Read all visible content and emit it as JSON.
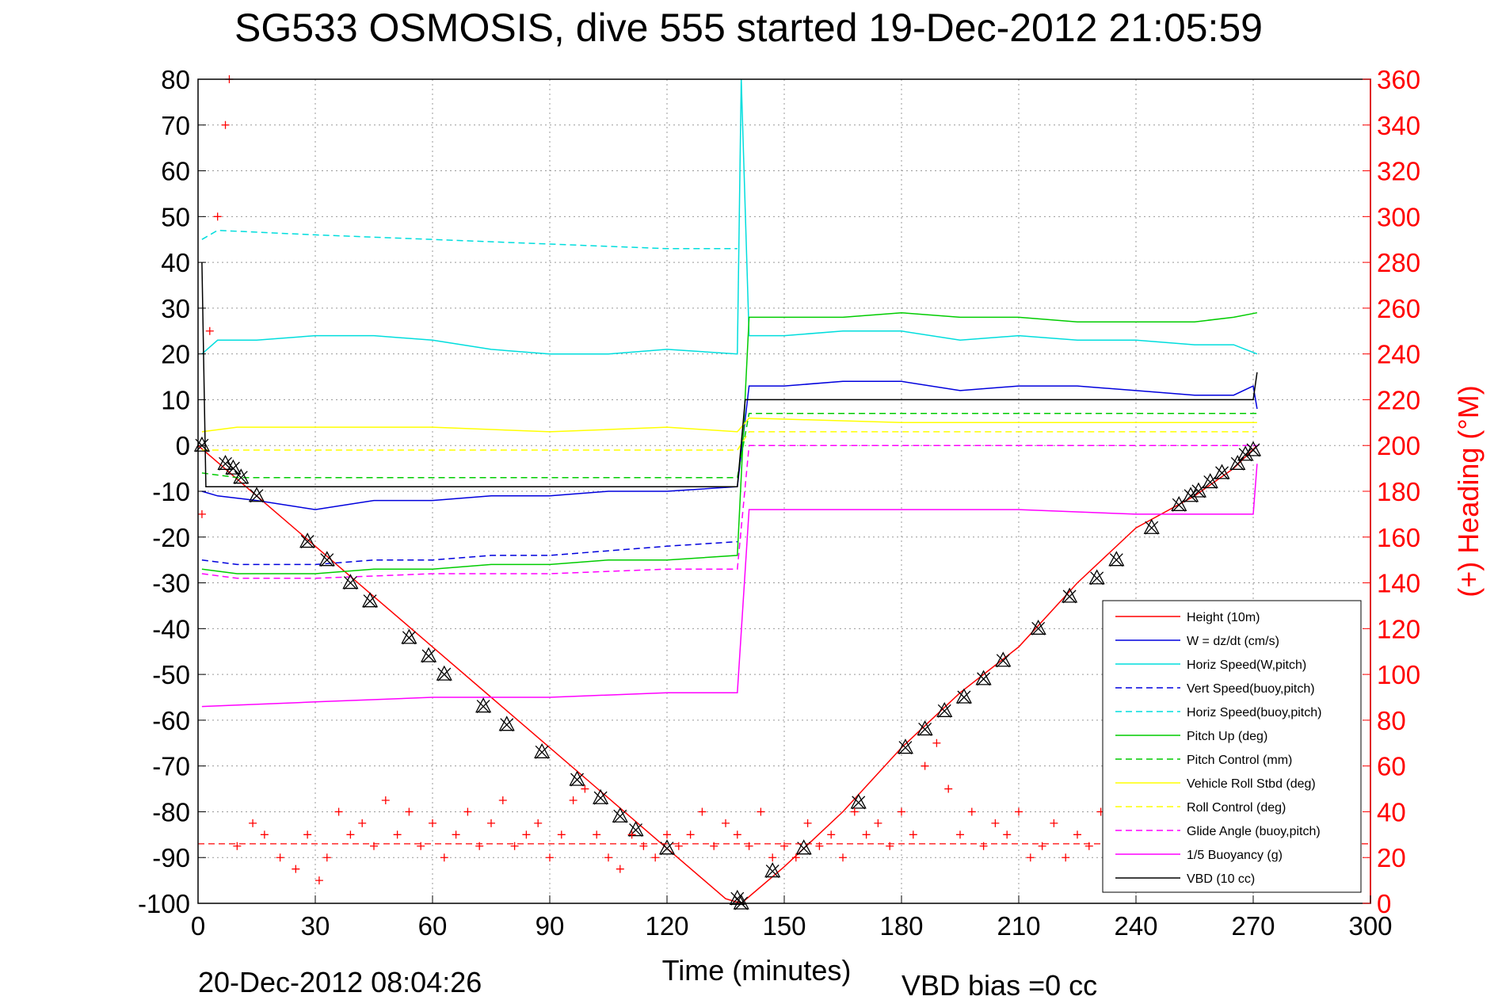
{
  "chart_data": {
    "type": "line",
    "title": "SG533 OSMOSIS, dive 555 started 19-Dec-2012 21:05:59",
    "xlabel": "Time (minutes)",
    "ylabel_right": "(+) Heading (°M)",
    "xlim": [
      0,
      300
    ],
    "ylim": [
      -100,
      80
    ],
    "ylim_right": [
      0,
      360
    ],
    "x_ticks": [
      "0",
      "30",
      "60",
      "90",
      "120",
      "150",
      "180",
      "210",
      "240",
      "270",
      "300"
    ],
    "y_ticks": [
      "80",
      "70",
      "60",
      "50",
      "40",
      "30",
      "20",
      "10",
      "0",
      "-10",
      "-20",
      "-30",
      "-40",
      "-50",
      "-60",
      "-70",
      "-80",
      "-90",
      "-100"
    ],
    "y_right_ticks": [
      "360",
      "340",
      "320",
      "300",
      "280",
      "260",
      "240",
      "220",
      "200",
      "180",
      "160",
      "140",
      "120",
      "100",
      "80",
      "60",
      "40",
      "20",
      "0"
    ],
    "grid": true,
    "legend_position": "bottom-right",
    "footer_left": "20-Dec-2012 08:04:26",
    "footer_center": "VBD bias =0 cc",
    "series": [
      {
        "name": "Height (10m)",
        "color": "#ff0000",
        "style": "solid",
        "x": [
          0,
          15,
          30,
          45,
          60,
          75,
          90,
          105,
          120,
          135,
          139,
          150,
          165,
          180,
          195,
          210,
          225,
          240,
          255,
          265,
          271
        ],
        "y": [
          0,
          -11,
          -22,
          -33,
          -44,
          -55,
          -66,
          -77,
          -88,
          -99,
          -100,
          -92,
          -80,
          -66,
          -54,
          -44,
          -30,
          -18,
          -11,
          -5,
          0
        ]
      },
      {
        "name": "W = dz/dt (cm/s)",
        "color": "#0000dd",
        "style": "solid",
        "x": [
          1,
          5,
          15,
          30,
          45,
          60,
          75,
          90,
          105,
          120,
          138,
          141,
          150,
          165,
          180,
          195,
          210,
          225,
          240,
          255,
          265,
          270,
          271
        ],
        "y": [
          -10,
          -11,
          -12,
          -14,
          -12,
          -12,
          -11,
          -11,
          -10,
          -10,
          -9,
          13,
          13,
          14,
          14,
          12,
          13,
          13,
          12,
          11,
          11,
          13,
          8
        ]
      },
      {
        "name": "Horiz Speed(W,pitch)",
        "color": "#00dddd",
        "style": "solid",
        "x": [
          1,
          5,
          15,
          30,
          45,
          60,
          75,
          90,
          105,
          120,
          138,
          139,
          141,
          150,
          165,
          180,
          195,
          210,
          225,
          240,
          255,
          265,
          271
        ],
        "y": [
          20,
          23,
          23,
          24,
          24,
          23,
          21,
          20,
          20,
          21,
          20,
          80,
          24,
          24,
          25,
          25,
          23,
          24,
          23,
          23,
          22,
          22,
          20
        ]
      },
      {
        "name": "Vert Speed(buoy,pitch)",
        "color": "#0000dd",
        "style": "dashed",
        "x": [
          1,
          10,
          30,
          45,
          60,
          75,
          90,
          105,
          120,
          138
        ],
        "y": [
          -25,
          -26,
          -26,
          -25,
          -25,
          -24,
          -24,
          -23,
          -22,
          -21
        ]
      },
      {
        "name": "Horiz Speed(buoy,pitch)",
        "color": "#00dddd",
        "style": "dashed",
        "x": [
          1,
          5,
          30,
          60,
          90,
          120,
          138
        ],
        "y": [
          45,
          47,
          46,
          45,
          44,
          43,
          43
        ]
      },
      {
        "name": "Pitch Up (deg)",
        "color": "#00cc00",
        "style": "solid",
        "x": [
          1,
          10,
          30,
          45,
          60,
          75,
          90,
          105,
          120,
          138,
          141,
          150,
          165,
          180,
          195,
          210,
          225,
          240,
          255,
          265,
          271
        ],
        "y": [
          -27,
          -28,
          -28,
          -27,
          -27,
          -26,
          -26,
          -25,
          -25,
          -24,
          28,
          28,
          28,
          29,
          28,
          28,
          27,
          27,
          27,
          28,
          29
        ]
      },
      {
        "name": "Pitch Control (mm)",
        "color": "#00cc00",
        "style": "dashed",
        "x": [
          1,
          10,
          138,
          141,
          271
        ],
        "y": [
          -6,
          -7,
          -7,
          7,
          7
        ]
      },
      {
        "name": "Vehicle Roll Stbd (deg)",
        "color": "#ffff00",
        "style": "solid",
        "x": [
          1,
          10,
          30,
          60,
          90,
          120,
          138,
          141,
          180,
          240,
          271
        ],
        "y": [
          3,
          4,
          4,
          4,
          3,
          4,
          3,
          6,
          5,
          5,
          5
        ]
      },
      {
        "name": "Roll Control (deg)",
        "color": "#ffff00",
        "style": "dashed",
        "x": [
          1,
          138,
          141,
          271
        ],
        "y": [
          -1,
          -1,
          3,
          3
        ]
      },
      {
        "name": "Glide Angle (buoy,pitch)",
        "color": "#ff00ff",
        "style": "dashed",
        "x": [
          1,
          10,
          30,
          60,
          90,
          120,
          138,
          141,
          271
        ],
        "y": [
          -28,
          -29,
          -29,
          -28,
          -28,
          -27,
          -27,
          0,
          0
        ]
      },
      {
        "name": "1/5 Buoyancy (g)",
        "color": "#ff00ff",
        "style": "solid",
        "x": [
          1,
          30,
          60,
          90,
          120,
          138,
          141,
          180,
          210,
          240,
          255,
          270,
          271
        ],
        "y": [
          -57,
          -56,
          -55,
          -55,
          -54,
          -54,
          -14,
          -14,
          -14,
          -15,
          -15,
          -15,
          -4
        ]
      },
      {
        "name": "VBD (10 cc)",
        "color": "#000000",
        "style": "solid",
        "x": [
          1,
          2,
          138,
          140,
          141,
          270,
          271
        ],
        "y": [
          40,
          -9,
          -9,
          10,
          10,
          10,
          16
        ]
      }
    ],
    "heading": {
      "color": "#ff0000",
      "marker": "+",
      "axis": "right",
      "x": [
        1,
        3,
        5,
        7,
        8,
        10,
        14,
        17,
        21,
        25,
        28,
        31,
        33,
        36,
        39,
        42,
        45,
        48,
        51,
        54,
        57,
        60,
        63,
        66,
        69,
        72,
        75,
        78,
        81,
        84,
        87,
        90,
        93,
        96,
        99,
        102,
        105,
        108,
        111,
        114,
        117,
        120,
        123,
        126,
        129,
        132,
        135,
        138,
        141,
        144,
        147,
        150,
        153,
        156,
        159,
        162,
        165,
        168,
        171,
        174,
        177,
        180,
        183,
        186,
        189,
        192,
        195,
        198,
        201,
        204,
        207,
        210,
        213,
        216,
        219,
        222,
        225,
        228,
        231,
        234,
        237,
        240,
        243,
        246,
        249,
        252,
        255,
        258,
        261,
        264,
        267,
        270
      ],
      "y": [
        170,
        250,
        300,
        340,
        360,
        25,
        35,
        30,
        20,
        15,
        30,
        10,
        20,
        40,
        30,
        35,
        25,
        45,
        30,
        40,
        25,
        35,
        20,
        30,
        40,
        25,
        35,
        45,
        25,
        30,
        35,
        20,
        30,
        45,
        50,
        30,
        20,
        15,
        30,
        25,
        20,
        30,
        25,
        30,
        40,
        25,
        35,
        30,
        25,
        40,
        20,
        25,
        20,
        35,
        25,
        30,
        20,
        40,
        30,
        35,
        25,
        40,
        30,
        60,
        70,
        50,
        30,
        40,
        25,
        35,
        30,
        40,
        20,
        25,
        35,
        20,
        30,
        25,
        40,
        50,
        30,
        35,
        25,
        45,
        30,
        40,
        25,
        35,
        30,
        25,
        40,
        25
      ]
    },
    "heading_mean": {
      "color": "#ff0000",
      "style": "dashed",
      "axis": "right",
      "value": 26
    },
    "markers": {
      "shape": "triangle-and-x",
      "color": "#000000",
      "x": [
        1,
        7,
        9,
        11,
        15,
        28,
        33,
        39,
        44,
        54,
        59,
        63,
        73,
        79,
        88,
        97,
        103,
        108,
        112,
        120,
        138,
        139,
        147,
        155,
        169,
        181,
        186,
        191,
        196,
        201,
        206,
        215,
        223,
        230,
        235,
        244,
        251,
        254,
        256,
        259,
        262,
        266,
        268,
        270
      ],
      "y": [
        0,
        -4,
        -5,
        -7,
        -11,
        -21,
        -25,
        -30,
        -34,
        -42,
        -46,
        -50,
        -57,
        -61,
        -67,
        -73,
        -77,
        -81,
        -84,
        -88,
        -99,
        -100,
        -93,
        -88,
        -78,
        -66,
        -62,
        -58,
        -55,
        -51,
        -47,
        -40,
        -33,
        -29,
        -25,
        -18,
        -13,
        -11,
        -10,
        -8,
        -6,
        -4,
        -2,
        -1
      ]
    }
  }
}
